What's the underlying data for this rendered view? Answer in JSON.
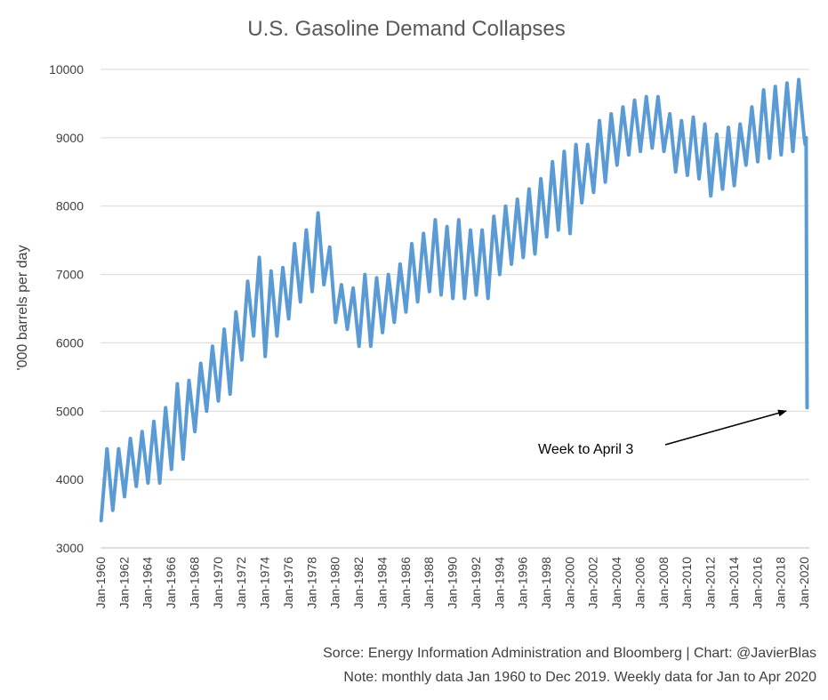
{
  "chart_data": {
    "type": "line",
    "title": "U.S. Gasoline Demand Collapses",
    "ylabel": "'000 barrels per day",
    "xlabel": "",
    "ylim": [
      3000,
      10000
    ],
    "yticks": [
      3000,
      4000,
      5000,
      6000,
      7000,
      8000,
      9000,
      10000
    ],
    "x_range": [
      1960,
      2020.3
    ],
    "xticks": [
      {
        "year": 1960,
        "label": "Jan-1960"
      },
      {
        "year": 1962,
        "label": "Jan-1962"
      },
      {
        "year": 1964,
        "label": "Jan-1964"
      },
      {
        "year": 1966,
        "label": "Jan-1966"
      },
      {
        "year": 1968,
        "label": "Jan-1968"
      },
      {
        "year": 1970,
        "label": "Jan-1970"
      },
      {
        "year": 1972,
        "label": "Jan-1972"
      },
      {
        "year": 1974,
        "label": "Jan-1974"
      },
      {
        "year": 1976,
        "label": "Jan-1976"
      },
      {
        "year": 1978,
        "label": "Jan-1978"
      },
      {
        "year": 1980,
        "label": "Jan-1980"
      },
      {
        "year": 1982,
        "label": "Jan-1982"
      },
      {
        "year": 1984,
        "label": "Jan-1984"
      },
      {
        "year": 1986,
        "label": "Jan-1986"
      },
      {
        "year": 1988,
        "label": "Jan-1988"
      },
      {
        "year": 1990,
        "label": "Jan-1990"
      },
      {
        "year": 1992,
        "label": "Jan-1992"
      },
      {
        "year": 1994,
        "label": "Jan-1994"
      },
      {
        "year": 1996,
        "label": "Jan-1996"
      },
      {
        "year": 1998,
        "label": "Jan-1998"
      },
      {
        "year": 2000,
        "label": "Jan-2000"
      },
      {
        "year": 2002,
        "label": "Jan-2002"
      },
      {
        "year": 2004,
        "label": "Jan-2004"
      },
      {
        "year": 2006,
        "label": "Jan-2006"
      },
      {
        "year": 2008,
        "label": "Jan-2008"
      },
      {
        "year": 2010,
        "label": "Jan-2010"
      },
      {
        "year": 2012,
        "label": "Jan-2012"
      },
      {
        "year": 2014,
        "label": "Jan-2014"
      },
      {
        "year": 2016,
        "label": "Jan-2016"
      },
      {
        "year": 2018,
        "label": "Jan-2018"
      },
      {
        "year": 2020,
        "label": "Jan-2020"
      }
    ],
    "series": [
      {
        "name": "U.S. gasoline demand",
        "color": "#5b9bd5",
        "annual_low": [
          {
            "year": 1960,
            "value": 3400
          },
          {
            "year": 1961,
            "value": 3550
          },
          {
            "year": 1962,
            "value": 3750
          },
          {
            "year": 1963,
            "value": 3900
          },
          {
            "year": 1964,
            "value": 3950
          },
          {
            "year": 1965,
            "value": 3950
          },
          {
            "year": 1966,
            "value": 4150
          },
          {
            "year": 1967,
            "value": 4300
          },
          {
            "year": 1968,
            "value": 4700
          },
          {
            "year": 1969,
            "value": 5000
          },
          {
            "year": 1970,
            "value": 5150
          },
          {
            "year": 1971,
            "value": 5250
          },
          {
            "year": 1972,
            "value": 5750
          },
          {
            "year": 1973,
            "value": 6100
          },
          {
            "year": 1974,
            "value": 5800
          },
          {
            "year": 1975,
            "value": 6100
          },
          {
            "year": 1976,
            "value": 6350
          },
          {
            "year": 1977,
            "value": 6600
          },
          {
            "year": 1978,
            "value": 6750
          },
          {
            "year": 1979,
            "value": 6850
          },
          {
            "year": 1980,
            "value": 6300
          },
          {
            "year": 1981,
            "value": 6200
          },
          {
            "year": 1982,
            "value": 5950
          },
          {
            "year": 1983,
            "value": 5950
          },
          {
            "year": 1984,
            "value": 6150
          },
          {
            "year": 1985,
            "value": 6300
          },
          {
            "year": 1986,
            "value": 6450
          },
          {
            "year": 1987,
            "value": 6600
          },
          {
            "year": 1988,
            "value": 6750
          },
          {
            "year": 1989,
            "value": 6700
          },
          {
            "year": 1990,
            "value": 6650
          },
          {
            "year": 1991,
            "value": 6650
          },
          {
            "year": 1992,
            "value": 6700
          },
          {
            "year": 1993,
            "value": 6650
          },
          {
            "year": 1994,
            "value": 7000
          },
          {
            "year": 1995,
            "value": 7150
          },
          {
            "year": 1996,
            "value": 7250
          },
          {
            "year": 1997,
            "value": 7300
          },
          {
            "year": 1998,
            "value": 7550
          },
          {
            "year": 1999,
            "value": 7650
          },
          {
            "year": 2000,
            "value": 7600
          },
          {
            "year": 2001,
            "value": 8050
          },
          {
            "year": 2002,
            "value": 8200
          },
          {
            "year": 2003,
            "value": 8350
          },
          {
            "year": 2004,
            "value": 8600
          },
          {
            "year": 2005,
            "value": 8750
          },
          {
            "year": 2006,
            "value": 8800
          },
          {
            "year": 2007,
            "value": 8850
          },
          {
            "year": 2008,
            "value": 8800
          },
          {
            "year": 2009,
            "value": 8500
          },
          {
            "year": 2010,
            "value": 8450
          },
          {
            "year": 2011,
            "value": 8400
          },
          {
            "year": 2012,
            "value": 8150
          },
          {
            "year": 2013,
            "value": 8250
          },
          {
            "year": 2014,
            "value": 8300
          },
          {
            "year": 2015,
            "value": 8600
          },
          {
            "year": 2016,
            "value": 8650
          },
          {
            "year": 2017,
            "value": 8700
          },
          {
            "year": 2018,
            "value": 8750
          },
          {
            "year": 2019,
            "value": 8800
          }
        ],
        "annual_high": [
          {
            "year": 1960,
            "value": 4450
          },
          {
            "year": 1961,
            "value": 4450
          },
          {
            "year": 1962,
            "value": 4600
          },
          {
            "year": 1963,
            "value": 4700
          },
          {
            "year": 1964,
            "value": 4850
          },
          {
            "year": 1965,
            "value": 5050
          },
          {
            "year": 1966,
            "value": 5400
          },
          {
            "year": 1967,
            "value": 5450
          },
          {
            "year": 1968,
            "value": 5700
          },
          {
            "year": 1969,
            "value": 5950
          },
          {
            "year": 1970,
            "value": 6200
          },
          {
            "year": 1971,
            "value": 6450
          },
          {
            "year": 1972,
            "value": 6900
          },
          {
            "year": 1973,
            "value": 7250
          },
          {
            "year": 1974,
            "value": 7050
          },
          {
            "year": 1975,
            "value": 7100
          },
          {
            "year": 1976,
            "value": 7450
          },
          {
            "year": 1977,
            "value": 7650
          },
          {
            "year": 1978,
            "value": 7900
          },
          {
            "year": 1979,
            "value": 7400
          },
          {
            "year": 1980,
            "value": 6850
          },
          {
            "year": 1981,
            "value": 6800
          },
          {
            "year": 1982,
            "value": 7000
          },
          {
            "year": 1983,
            "value": 6950
          },
          {
            "year": 1984,
            "value": 7000
          },
          {
            "year": 1985,
            "value": 7150
          },
          {
            "year": 1986,
            "value": 7450
          },
          {
            "year": 1987,
            "value": 7600
          },
          {
            "year": 1988,
            "value": 7800
          },
          {
            "year": 1989,
            "value": 7700
          },
          {
            "year": 1990,
            "value": 7800
          },
          {
            "year": 1991,
            "value": 7650
          },
          {
            "year": 1992,
            "value": 7650
          },
          {
            "year": 1993,
            "value": 7850
          },
          {
            "year": 1994,
            "value": 8000
          },
          {
            "year": 1995,
            "value": 8100
          },
          {
            "year": 1996,
            "value": 8250
          },
          {
            "year": 1997,
            "value": 8400
          },
          {
            "year": 1998,
            "value": 8650
          },
          {
            "year": 1999,
            "value": 8800
          },
          {
            "year": 2000,
            "value": 8900
          },
          {
            "year": 2001,
            "value": 8900
          },
          {
            "year": 2002,
            "value": 9250
          },
          {
            "year": 2003,
            "value": 9350
          },
          {
            "year": 2004,
            "value": 9450
          },
          {
            "year": 2005,
            "value": 9550
          },
          {
            "year": 2006,
            "value": 9600
          },
          {
            "year": 2007,
            "value": 9600
          },
          {
            "year": 2008,
            "value": 9350
          },
          {
            "year": 2009,
            "value": 9250
          },
          {
            "year": 2010,
            "value": 9300
          },
          {
            "year": 2011,
            "value": 9200
          },
          {
            "year": 2012,
            "value": 9050
          },
          {
            "year": 2013,
            "value": 9150
          },
          {
            "year": 2014,
            "value": 9200
          },
          {
            "year": 2015,
            "value": 9450
          },
          {
            "year": 2016,
            "value": 9700
          },
          {
            "year": 2017,
            "value": 9750
          },
          {
            "year": 2018,
            "value": 9800
          },
          {
            "year": 2019,
            "value": 9850
          }
        ],
        "weekly_2020": [
          {
            "x": 2020.02,
            "y": 9000
          },
          {
            "x": 2020.1,
            "y": 8900
          },
          {
            "x": 2020.18,
            "y": 9000
          },
          {
            "x": 2020.22,
            "y": 7000
          },
          {
            "x": 2020.26,
            "y": 5050
          }
        ]
      }
    ],
    "annotations": [
      {
        "text": "Week to April 3",
        "points_to": {
          "x": 2020.26,
          "y": 5050
        }
      }
    ]
  },
  "footnotes": {
    "source": "Sorce: Energy Information Administration and Bloomberg | Chart: @JavierBlas",
    "note": "Note: monthly data Jan 1960 to Dec 2019. Weekly data for Jan to Apr 2020"
  }
}
